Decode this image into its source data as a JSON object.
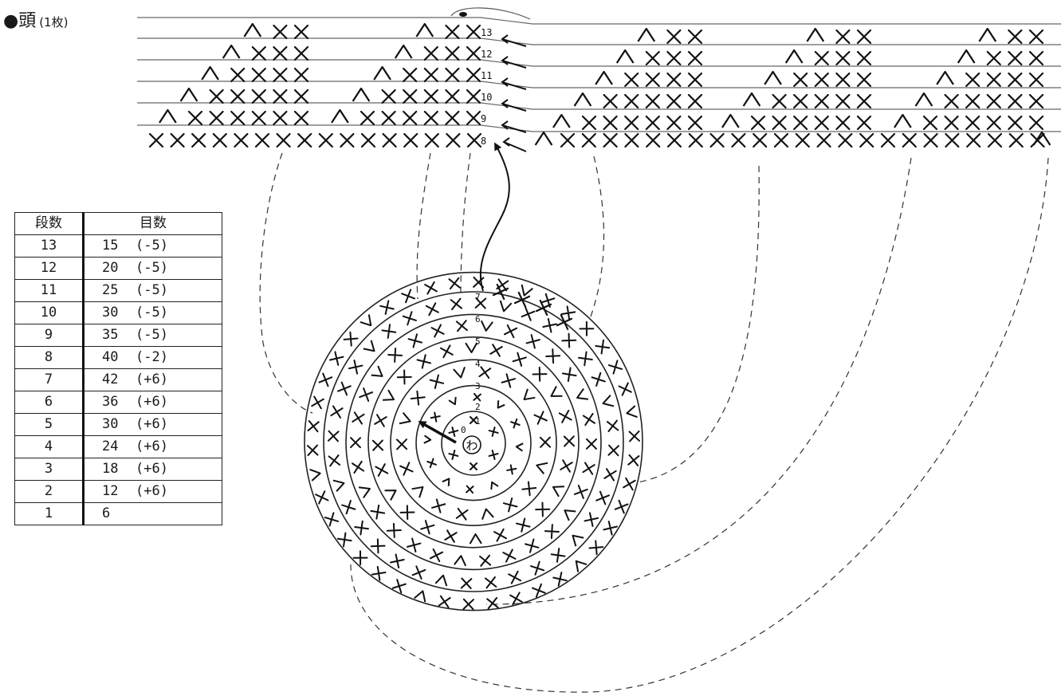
{
  "title": {
    "main": "●頭",
    "sub": "(1枚)"
  },
  "table": {
    "headers": [
      "段数",
      "目数"
    ],
    "rows": [
      {
        "row": "13",
        "stitches": "15",
        "change": "(-5)"
      },
      {
        "row": "12",
        "stitches": "20",
        "change": "(-5)"
      },
      {
        "row": "11",
        "stitches": "25",
        "change": "(-5)"
      },
      {
        "row": "10",
        "stitches": "30",
        "change": "(-5)"
      },
      {
        "row": "9",
        "stitches": "35",
        "change": "(-5)"
      },
      {
        "row": "8",
        "stitches": "40",
        "change": "(-2)"
      },
      {
        "row": "7",
        "stitches": "42",
        "change": "(+6)"
      },
      {
        "row": "6",
        "stitches": "36",
        "change": "(+6)"
      },
      {
        "row": "5",
        "stitches": "30",
        "change": "(+6)"
      },
      {
        "row": "4",
        "stitches": "24",
        "change": "(+6)"
      },
      {
        "row": "3",
        "stitches": "18",
        "change": "(+6)"
      },
      {
        "row": "2",
        "stitches": "12",
        "change": "(+6)"
      },
      {
        "row": "1",
        "stitches": "6",
        "change": ""
      }
    ]
  },
  "chart": {
    "flat_row_numbers": [
      "13",
      "12",
      "11",
      "10",
      "9",
      "8"
    ],
    "round_row_numbers": [
      "1",
      "2",
      "3",
      "4",
      "5",
      "6",
      "7"
    ],
    "ring_label": "わ",
    "round_start_label": "0"
  }
}
